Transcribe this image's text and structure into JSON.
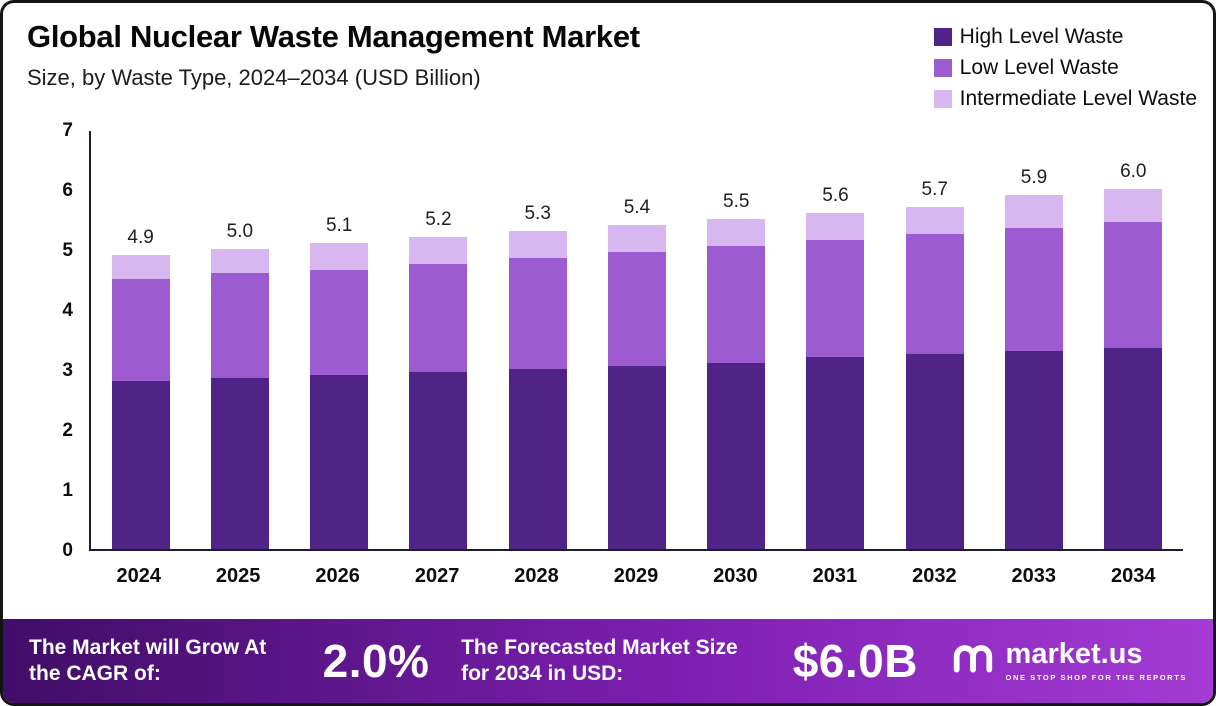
{
  "title": "Global Nuclear Waste Management Market",
  "subtitle": "Size, by Waste Type, 2024–2034 (USD Billion)",
  "legend": [
    {
      "label": "High Level Waste",
      "color": "#4f2486"
    },
    {
      "label": "Low Level Waste",
      "color": "#9d5bd2"
    },
    {
      "label": "Intermediate Level Waste",
      "color": "#d8b6ef"
    }
  ],
  "chart_data": {
    "type": "bar",
    "stacked": true,
    "title": "Global Nuclear Waste Management Market Size, by Waste Type, 2024-2034 (USD Billion)",
    "categories": [
      "2024",
      "2025",
      "2026",
      "2027",
      "2028",
      "2029",
      "2030",
      "2031",
      "2032",
      "2033",
      "2034"
    ],
    "series": [
      {
        "name": "High Level Waste",
        "color": "#4f2486",
        "values": [
          2.8,
          2.85,
          2.9,
          2.95,
          3.0,
          3.05,
          3.1,
          3.2,
          3.25,
          3.3,
          3.35
        ]
      },
      {
        "name": "Low Level Waste",
        "color": "#9d5bd2",
        "values": [
          1.7,
          1.75,
          1.75,
          1.8,
          1.85,
          1.9,
          1.95,
          1.95,
          2.0,
          2.05,
          2.1
        ]
      },
      {
        "name": "Intermediate Level Waste",
        "color": "#d8b6ef",
        "values": [
          0.4,
          0.4,
          0.45,
          0.45,
          0.45,
          0.45,
          0.45,
          0.45,
          0.45,
          0.55,
          0.55
        ]
      }
    ],
    "totals": [
      "4.9",
      "5.0",
      "5.1",
      "5.2",
      "5.3",
      "5.4",
      "5.5",
      "5.6",
      "5.7",
      "5.9",
      "6.0"
    ],
    "xlabel": "",
    "ylabel": "",
    "ylim": [
      0,
      7
    ],
    "yticks": [
      0,
      1,
      2,
      3,
      4,
      5,
      6,
      7
    ],
    "grid": false,
    "legend_position": "top-right"
  },
  "footer": {
    "cagr_label": "The Market will Grow At the CAGR of:",
    "cagr_value": "2.0%",
    "forecast_label": "The Forecasted Market Size for 2034 in USD:",
    "forecast_value": "$6.0B",
    "brand": "market.us",
    "brand_tagline": "ONE STOP SHOP FOR THE REPORTS",
    "gradient": [
      "#400d67",
      "#7c1fb0",
      "#a43bd4"
    ]
  }
}
